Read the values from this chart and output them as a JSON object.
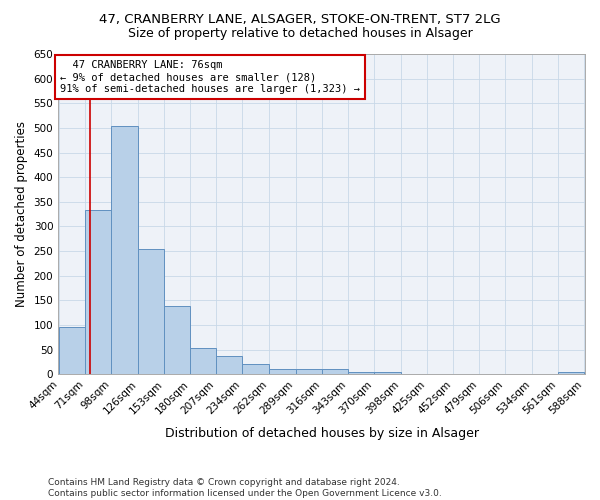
{
  "title1": "47, CRANBERRY LANE, ALSAGER, STOKE-ON-TRENT, ST7 2LG",
  "title2": "Size of property relative to detached houses in Alsager",
  "xlabel": "Distribution of detached houses by size in Alsager",
  "ylabel": "Number of detached properties",
  "footnote": "Contains HM Land Registry data © Crown copyright and database right 2024.\nContains public sector information licensed under the Open Government Licence v3.0.",
  "bar_edges": [
    44,
    71,
    98,
    126,
    153,
    180,
    207,
    234,
    262,
    289,
    316,
    343,
    370,
    398,
    425,
    452,
    479,
    506,
    534,
    561,
    588
  ],
  "bar_heights": [
    96,
    333,
    504,
    255,
    138,
    53,
    37,
    21,
    10,
    10,
    10,
    5,
    5,
    0,
    0,
    0,
    0,
    0,
    0,
    5
  ],
  "bar_color": "#b8d0e8",
  "bar_edge_color": "#6090c0",
  "property_line_x": 76,
  "property_line_color": "#cc0000",
  "annotation_text": "  47 CRANBERRY LANE: 76sqm\n← 9% of detached houses are smaller (128)\n91% of semi-detached houses are larger (1,323) →",
  "annotation_box_color": "#cc0000",
  "ylim": [
    0,
    650
  ],
  "yticks": [
    0,
    50,
    100,
    150,
    200,
    250,
    300,
    350,
    400,
    450,
    500,
    550,
    600,
    650
  ],
  "grid_color": "#c8d8e8",
  "bg_color": "#eef2f8",
  "title1_fontsize": 9.5,
  "title2_fontsize": 9,
  "xlabel_fontsize": 9,
  "ylabel_fontsize": 8.5,
  "tick_fontsize": 7.5,
  "annot_fontsize": 7.5,
  "footnote_fontsize": 6.5
}
